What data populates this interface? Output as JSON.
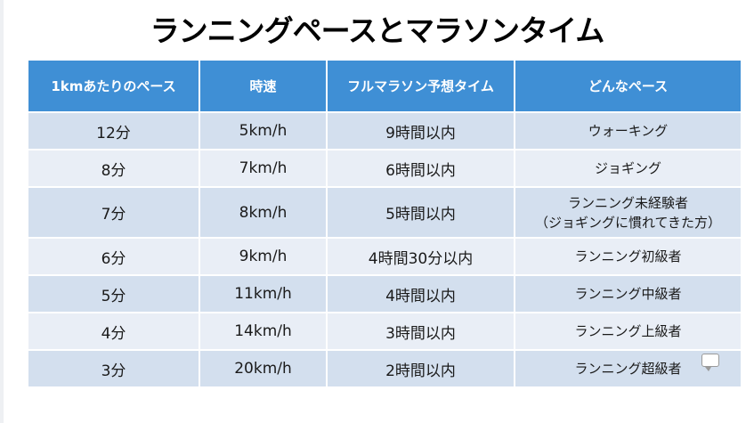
{
  "title": "ランニングペースとマラソンタイム",
  "table": {
    "headers": [
      "1kmあたりのペース",
      "時速",
      "フルマラソン予想タイム",
      "どんなペース"
    ],
    "rows": [
      {
        "pace": "12分",
        "speed": "5km/h",
        "marathon": "9時間以内",
        "desc": "ウォーキング"
      },
      {
        "pace": "8分",
        "speed": "7km/h",
        "marathon": "6時間以内",
        "desc": "ジョギング"
      },
      {
        "pace": "7分",
        "speed": "8km/h",
        "marathon": "5時間以内",
        "desc": "ランニング未経験者",
        "desc2": "（ジョギングに慣れてきた方）"
      },
      {
        "pace": "6分",
        "speed": "9km/h",
        "marathon": "4時間30分以内",
        "desc": "ランニング初級者"
      },
      {
        "pace": "5分",
        "speed": "11km/h",
        "marathon": "4時間以内",
        "desc": "ランニング中級者"
      },
      {
        "pace": "4分",
        "speed": "14km/h",
        "marathon": "3時間以内",
        "desc": "ランニング上級者"
      },
      {
        "pace": "3分",
        "speed": "20km/h",
        "marathon": "2時間以内",
        "desc": "ランニング超級者"
      }
    ]
  },
  "colors": {
    "header_bg": "#3f8fd5",
    "row_odd": "#d3dfee",
    "row_even": "#e9eef6"
  },
  "icons": {
    "comment": "comment-icon"
  }
}
